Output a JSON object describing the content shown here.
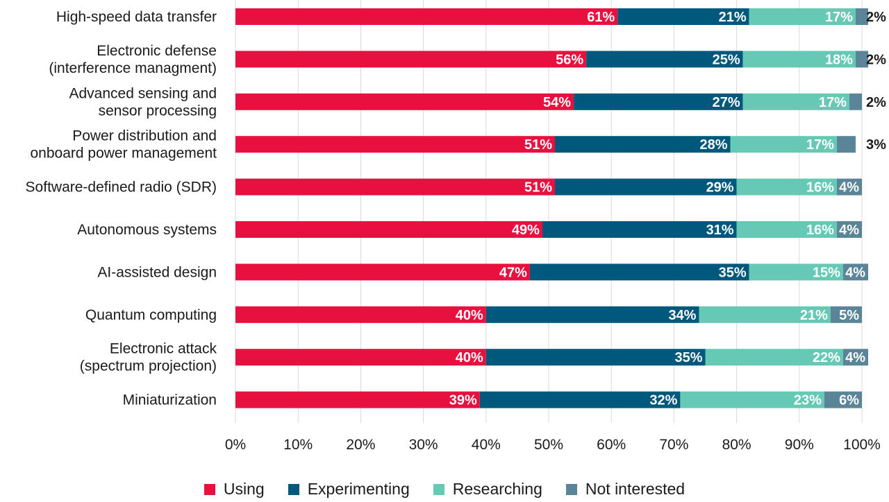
{
  "chart_data": {
    "type": "bar",
    "orientation": "horizontal",
    "stacked": true,
    "categories": [
      "High-speed data transfer",
      "Electronic defense\n(interference managment)",
      "Advanced sensing and\nsensor processing",
      "Power distribution and\nonboard power management",
      "Software-defined radio (SDR)",
      "Autonomous systems",
      "AI-assisted design",
      "Quantum computing",
      "Electronic attack\n(spectrum projection)",
      "Miniaturization"
    ],
    "series": [
      {
        "name": "Using",
        "color": "#e8103e",
        "values": [
          61,
          56,
          54,
          51,
          51,
          49,
          47,
          40,
          40,
          39
        ]
      },
      {
        "name": "Experimenting",
        "color": "#00587c",
        "values": [
          21,
          25,
          27,
          28,
          29,
          31,
          35,
          34,
          35,
          32
        ]
      },
      {
        "name": "Researching",
        "color": "#66c9b5",
        "values": [
          17,
          18,
          17,
          17,
          16,
          16,
          15,
          21,
          22,
          23
        ]
      },
      {
        "name": "Not interested",
        "color": "#5a8498",
        "values": [
          2,
          2,
          2,
          3,
          4,
          4,
          4,
          5,
          4,
          6
        ]
      }
    ],
    "xlim": [
      0,
      100
    ],
    "xticks": [
      "0%",
      "10%",
      "20%",
      "30%",
      "40%",
      "50%",
      "60%",
      "70%",
      "80%",
      "90%",
      "100%"
    ],
    "grid": "vertical",
    "legend_position": "bottom",
    "value_suffix": "%"
  }
}
